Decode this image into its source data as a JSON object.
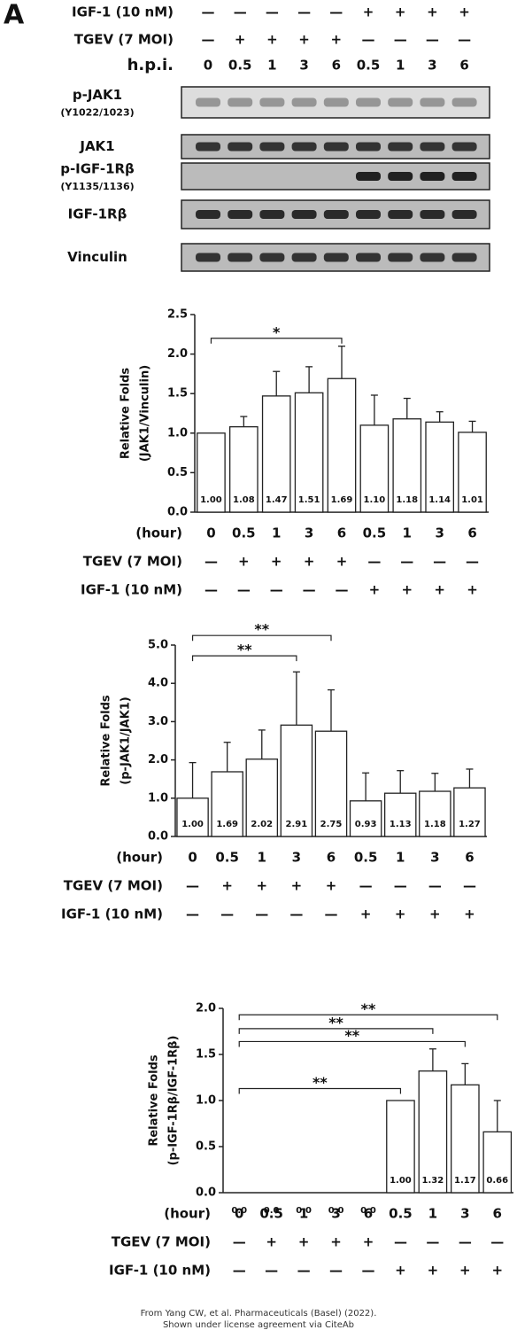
{
  "panel_label": "A",
  "blot": {
    "conditions": [
      {
        "label": "IGF-1 (10 nM)",
        "values": [
          "—",
          "—",
          "—",
          "—",
          "—",
          "+",
          "+",
          "+",
          "+"
        ]
      },
      {
        "label": "TGEV (7 MOI)",
        "values": [
          "—",
          "+",
          "+",
          "+",
          "+",
          "—",
          "—",
          "—",
          "—"
        ]
      },
      {
        "label": "h.p.i.",
        "values": [
          "0",
          "0.5",
          "1",
          "3",
          "6",
          "0.5",
          "1",
          "3",
          "6"
        ]
      }
    ],
    "bands": [
      {
        "label": "p-JAK1",
        "sublabel": "(Y1022/1023)"
      },
      {
        "label": "JAK1"
      },
      {
        "label": "p-IGF-1Rβ",
        "sublabel": "(Y1135/1136)"
      },
      {
        "label": "IGF-1Rβ"
      },
      {
        "label": "Vinculin"
      }
    ]
  },
  "chart_data": [
    {
      "type": "bar",
      "ylabel": [
        "Relative Folds",
        "(JAK1/Vinculin)"
      ],
      "xlabel": "(hour)",
      "categories": [
        "0",
        "0.5",
        "1",
        "3",
        "6",
        "0.5",
        "1",
        "3",
        "6"
      ],
      "values": [
        1.0,
        1.08,
        1.47,
        1.51,
        1.69,
        1.1,
        1.18,
        1.14,
        1.01
      ],
      "value_labels": [
        "1.00",
        "1.08",
        "1.47",
        "1.51",
        "1.69",
        "1.10",
        "1.18",
        "1.14",
        "1.01"
      ],
      "errors": [
        0,
        0.13,
        0.31,
        0.33,
        0.41,
        0.38,
        0.26,
        0.13,
        0.14
      ],
      "color": "#ffffff",
      "ylim": [
        0,
        2.5
      ],
      "yticks": [
        {
          "value": 0,
          "label": "0.0"
        },
        0.5,
        {
          "value": 1,
          "label": "1.0"
        },
        1.5,
        {
          "value": 2,
          "label": "2.0"
        },
        2.5
      ],
      "conditions": [
        {
          "label": "TGEV (7 MOI)",
          "values": [
            "—",
            "+",
            "+",
            "+",
            "+",
            "—",
            "—",
            "—",
            "—"
          ]
        },
        {
          "label": "IGF-1 (10 nM)",
          "values": [
            "—",
            "—",
            "—",
            "—",
            "—",
            "+",
            "+",
            "+",
            "+"
          ]
        }
      ],
      "annotations": [
        {
          "text": "*",
          "from": 0,
          "to": 4,
          "y": 2.2
        }
      ]
    },
    {
      "type": "bar",
      "ylabel": [
        "Relative Folds",
        "(p-JAK1/JAK1)"
      ],
      "xlabel": "(hour)",
      "categories": [
        "0",
        "0.5",
        "1",
        "3",
        "6",
        "0.5",
        "1",
        "3",
        "6"
      ],
      "values": [
        1.0,
        1.69,
        2.02,
        2.91,
        2.75,
        0.93,
        1.13,
        1.18,
        1.27
      ],
      "value_labels": [
        "1.00",
        "1.69",
        "2.02",
        "2.91",
        "2.75",
        "0.93",
        "1.13",
        "1.18",
        "1.27"
      ],
      "errors": [
        0.93,
        0.77,
        0.76,
        1.39,
        1.08,
        0.73,
        0.59,
        0.47,
        0.49
      ],
      "color": "#ffffff",
      "ylim": [
        0,
        5
      ],
      "yticks": [
        {
          "value": 0,
          "label": "0.0"
        },
        {
          "value": 1,
          "label": "1.0"
        },
        {
          "value": 2,
          "label": "2.0"
        },
        {
          "value": 3,
          "label": "3.0"
        },
        {
          "value": 4,
          "label": "4.0"
        },
        {
          "value": 5,
          "label": "5.0"
        }
      ],
      "conditions": [
        {
          "label": "TGEV (7 MOI)",
          "values": [
            "—",
            "+",
            "+",
            "+",
            "+",
            "—",
            "—",
            "—",
            "—"
          ]
        },
        {
          "label": "IGF-1 (10 nM)",
          "values": [
            "—",
            "—",
            "—",
            "—",
            "—",
            "+",
            "+",
            "+",
            "+"
          ]
        }
      ],
      "annotations": [
        {
          "text": "**",
          "from": 0,
          "to": 3,
          "y": 4.72
        },
        {
          "text": "**",
          "from": 0,
          "to": 4,
          "y": 5.25
        }
      ]
    },
    {
      "type": "bar",
      "ylabel": [
        "Relative Folds",
        "(p-IGF-1Rβ/IGF-1Rβ)"
      ],
      "xlabel": "(hour)",
      "categories": [
        "0",
        "0.5",
        "1",
        "3",
        "6",
        "0.5",
        "1",
        "3",
        "6"
      ],
      "values": [
        0,
        0,
        0,
        0,
        0,
        1.0,
        1.32,
        1.17,
        0.66
      ],
      "value_labels": [
        "0.0",
        "0.0",
        "0.0",
        "0.0",
        "0.0",
        "1.00",
        "1.32",
        "1.17",
        "0.66"
      ],
      "errors": [
        0,
        0,
        0,
        0,
        0,
        0,
        0.24,
        0.23,
        0.34
      ],
      "color": "#ffffff",
      "ylim": [
        0,
        2
      ],
      "yticks": [
        {
          "value": 0,
          "label": "0.0"
        },
        0.5,
        {
          "value": 1,
          "label": "1.0"
        },
        1.5,
        {
          "value": 2,
          "label": "2.0"
        }
      ],
      "conditions": [
        {
          "label": "TGEV (7 MOI)",
          "values": [
            "—",
            "+",
            "+",
            "+",
            "+",
            "—",
            "—",
            "—",
            "—"
          ]
        },
        {
          "label": "IGF-1 (10 nM)",
          "values": [
            "—",
            "—",
            "—",
            "—",
            "—",
            "+",
            "+",
            "+",
            "+"
          ]
        }
      ],
      "annotations": [
        {
          "text": "**",
          "from": 0,
          "to": 5,
          "y": 1.13
        },
        {
          "text": "**",
          "from": 0,
          "to": 7,
          "y": 1.64
        },
        {
          "text": "**",
          "from": 0,
          "to": 6,
          "y": 1.78
        },
        {
          "text": "**",
          "from": 0,
          "to": 8,
          "y": 1.93
        }
      ]
    }
  ],
  "footer": [
    "From Yang CW, et al. Pharmaceuticals (Basel) (2022).",
    "Shown under license agreement via CiteAb"
  ]
}
